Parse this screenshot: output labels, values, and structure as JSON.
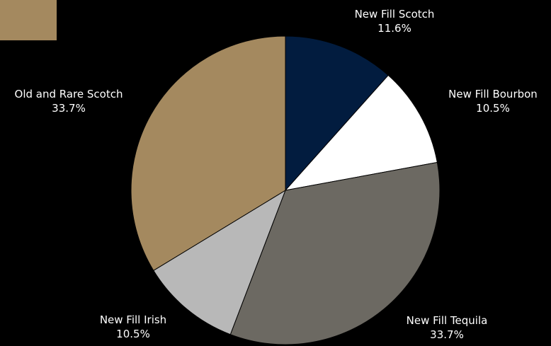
{
  "chart_data": {
    "type": "pie",
    "slices": [
      {
        "label": "New Fill Scotch",
        "value": 11.6,
        "value_label": "11.6%",
        "color": "#021c3f"
      },
      {
        "label": "New Fill Bourbon",
        "value": 10.5,
        "value_label": "10.5%",
        "color": "#ffffff"
      },
      {
        "label": "New Fill Tequila",
        "value": 33.7,
        "value_label": "33.7%",
        "color": "#6c6962"
      },
      {
        "label": "New Fill Irish",
        "value": 10.5,
        "value_label": "10.5%",
        "color": "#b8b8b8"
      },
      {
        "label": "Old and Rare Scotch",
        "value": 33.7,
        "value_label": "33.7%",
        "color": "#a4895f"
      }
    ],
    "start_angle": "12 o'clock",
    "direction": "clockwise",
    "legend": {
      "position": "top-left",
      "swatch_color": "#a4895f"
    }
  },
  "colors": {
    "background": "#000000",
    "label_text": "#ffffff"
  }
}
